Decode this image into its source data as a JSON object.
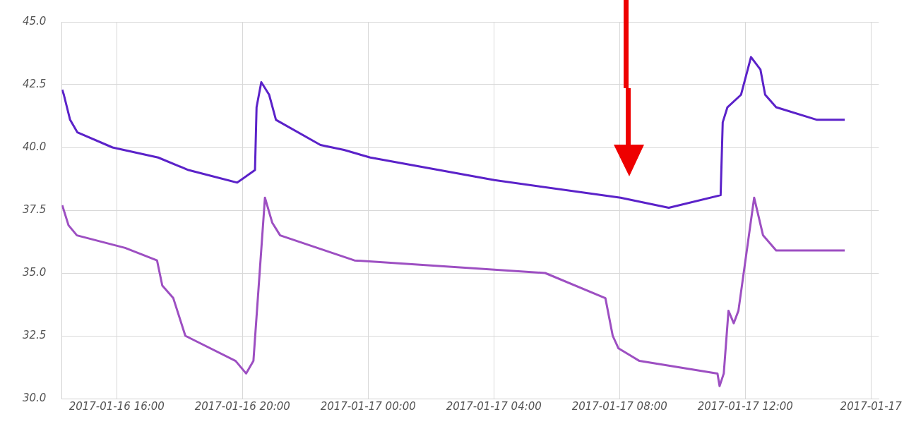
{
  "chart_data": {
    "type": "line",
    "xlim": [
      "2017-01-16T14:15",
      "2017-01-17T16:15"
    ],
    "ylim": [
      30,
      45
    ],
    "yticks": [
      {
        "value": 30,
        "label": "30.0"
      },
      {
        "value": 32.5,
        "label": "32.5"
      },
      {
        "value": 35,
        "label": "35.0"
      },
      {
        "value": 37.5,
        "label": "37.5"
      },
      {
        "value": 40,
        "label": "40.0"
      },
      {
        "value": 42.5,
        "label": "42.5"
      },
      {
        "value": 45,
        "label": "45.0"
      }
    ],
    "xticks": [
      {
        "value": "2017-01-16T16:00",
        "label": "2017-01-16 16:00"
      },
      {
        "value": "2017-01-16T20:00",
        "label": "2017-01-16 20:00"
      },
      {
        "value": "2017-01-17T00:00",
        "label": "2017-01-17 00:00"
      },
      {
        "value": "2017-01-17T04:00",
        "label": "2017-01-17 04:00"
      },
      {
        "value": "2017-01-17T08:00",
        "label": "2017-01-17 08:00"
      },
      {
        "value": "2017-01-17T12:00",
        "label": "2017-01-17 12:00"
      },
      {
        "value": "2017-01-17T16:00",
        "label": "2017-01-17"
      }
    ],
    "grid": true,
    "legend": false,
    "marker": "none",
    "line_style": "solid",
    "series": [
      {
        "color": "#5b22c9",
        "x": [
          "2017-01-16T14:16",
          "2017-01-16T14:19",
          "2017-01-16T14:31",
          "2017-01-16T14:45",
          "2017-01-16T15:52",
          "2017-01-16T17:19",
          "2017-01-16T18:17",
          "2017-01-16T19:50",
          "2017-01-16T20:24",
          "2017-01-16T20:27",
          "2017-01-16T20:36",
          "2017-01-16T20:51",
          "2017-01-16T21:04",
          "2017-01-16T22:29",
          "2017-01-16T23:14",
          "2017-01-17T00:04",
          "2017-01-17T04:01",
          "2017-01-17T08:02",
          "2017-01-17T09:34",
          "2017-01-17T11:13",
          "2017-01-17T11:17",
          "2017-01-17T11:26",
          "2017-01-17T11:52",
          "2017-01-17T12:11",
          "2017-01-17T12:29",
          "2017-01-17T12:38",
          "2017-01-17T12:59",
          "2017-01-17T14:17",
          "2017-01-17T15:10"
        ],
        "values": [
          42.3,
          42.1,
          41.1,
          40.6,
          40.0,
          39.6,
          39.1,
          38.6,
          39.1,
          41.6,
          42.6,
          42.1,
          41.1,
          40.1,
          39.9,
          39.6,
          38.7,
          38.0,
          37.6,
          38.1,
          41.0,
          41.6,
          42.1,
          43.6,
          43.1,
          42.1,
          41.6,
          41.1,
          41.1
        ]
      },
      {
        "color": "#9d4fc2",
        "x": [
          "2017-01-16T14:16",
          "2017-01-16T14:28",
          "2017-01-16T14:44",
          "2017-01-16T16:16",
          "2017-01-16T17:17",
          "2017-01-16T17:27",
          "2017-01-16T17:48",
          "2017-01-16T18:11",
          "2017-01-16T19:47",
          "2017-01-16T20:07",
          "2017-01-16T20:21",
          "2017-01-16T20:43",
          "2017-01-16T20:57",
          "2017-01-16T21:12",
          "2017-01-16T23:34",
          "2017-01-17T05:38",
          "2017-01-17T07:33",
          "2017-01-17T07:47",
          "2017-01-17T07:58",
          "2017-01-17T08:38",
          "2017-01-17T11:07",
          "2017-01-17T11:11",
          "2017-01-17T11:19",
          "2017-01-17T11:28",
          "2017-01-17T11:38",
          "2017-01-17T11:47",
          "2017-01-17T12:17",
          "2017-01-17T12:34",
          "2017-01-17T12:59",
          "2017-01-17T15:10"
        ],
        "values": [
          37.7,
          36.9,
          36.5,
          36.0,
          35.5,
          34.5,
          34.0,
          32.5,
          31.5,
          31.0,
          31.5,
          38.0,
          37.0,
          36.5,
          35.5,
          35.0,
          34.0,
          32.5,
          32.0,
          31.5,
          31.0,
          30.5,
          31.0,
          33.5,
          33.0,
          33.5,
          38.0,
          36.5,
          35.9,
          35.9
        ]
      }
    ]
  }
}
